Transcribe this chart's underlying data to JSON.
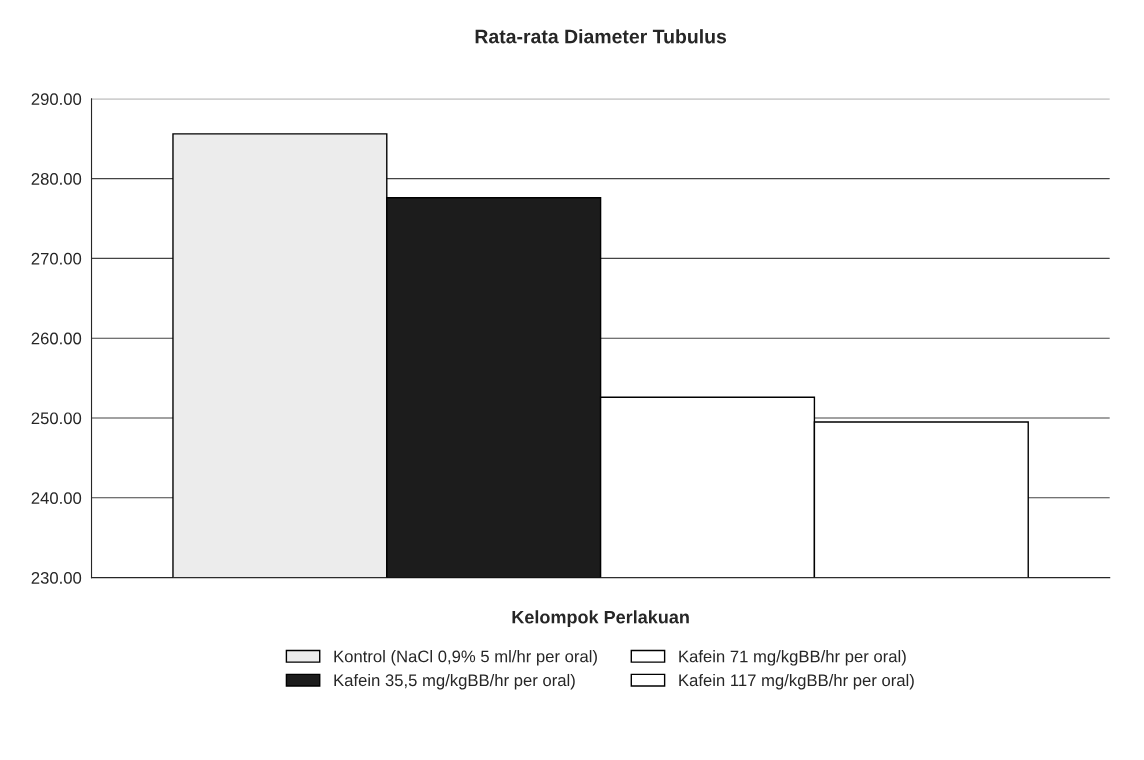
{
  "chart_data": {
    "type": "bar",
    "title": "Rata-rata Diameter Tubulus",
    "xlabel": "Kelompok Perlakuan",
    "categories": [
      null
    ],
    "series": [
      {
        "name": "Kontrol (NaCl 0,9% 5 ml/hr per oral)",
        "color": "#ececec",
        "values": [
          285.6
        ]
      },
      {
        "name": "Kafein 35,5 mg/kgBB/hr per oral)",
        "color": "#1c1c1c",
        "values": [
          277.6
        ]
      },
      {
        "name": "Kafein 71 mg/kgBB/hr per oral)",
        "color": "#ffffff",
        "values": [
          252.6
        ]
      },
      {
        "name": "Kafein 117 mg/kgBB/hr per oral)",
        "color": "#ffffff",
        "values": [
          249.5
        ]
      }
    ],
    "ylim": [
      230,
      290
    ],
    "yticks": [
      {
        "value": 230,
        "label": "230.00"
      },
      {
        "value": 240,
        "label": "240.00"
      },
      {
        "value": 250,
        "label": "250.00"
      },
      {
        "value": 260,
        "label": "260.00"
      },
      {
        "value": 270,
        "label": "270.00"
      },
      {
        "value": 280,
        "label": "280.00"
      },
      {
        "value": 290,
        "label": "290.00"
      }
    ],
    "grid": "y",
    "legend": "bottom"
  }
}
